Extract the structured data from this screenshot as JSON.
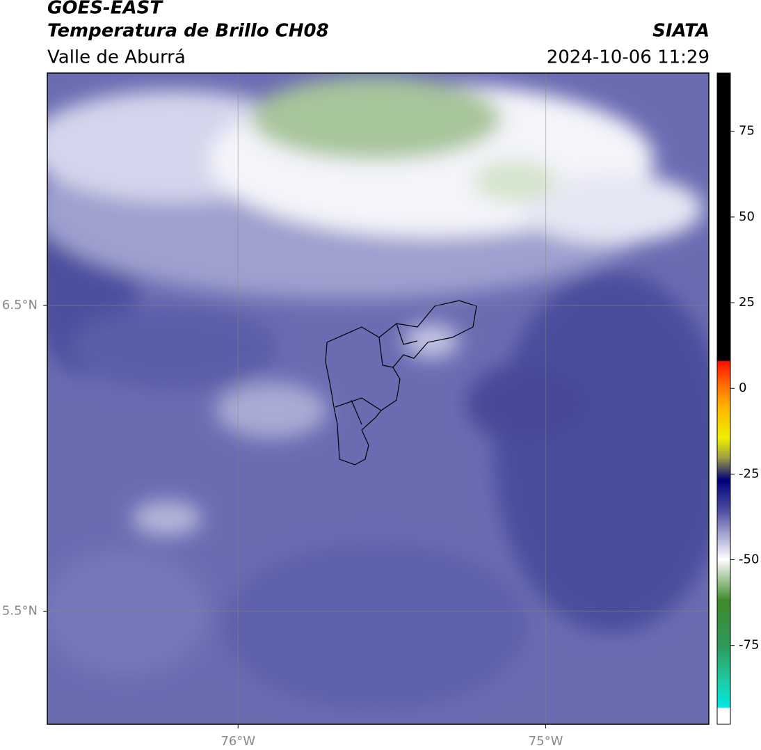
{
  "header": {
    "title": "GOES-EAST",
    "subtitle": "Temperatura de Brillo CH08",
    "region": "Valle de Aburrá",
    "source": "SIATA",
    "datetime": "2024-10-06 11:29"
  },
  "map": {
    "lonlim": [
      -76.62,
      -74.47
    ],
    "latlim": [
      5.13,
      7.26
    ],
    "lat_ticks": [
      {
        "value": 6.5,
        "label": "6.5°N"
      },
      {
        "value": 5.5,
        "label": "5.5°N"
      }
    ],
    "lon_ticks": [
      {
        "value": -76,
        "label": "76°W"
      },
      {
        "value": -75,
        "label": "75°W"
      }
    ]
  },
  "colorbar": {
    "lim": [
      -98,
      92
    ],
    "ticks": [
      75,
      50,
      25,
      0,
      -25,
      -50,
      -75
    ]
  }
}
